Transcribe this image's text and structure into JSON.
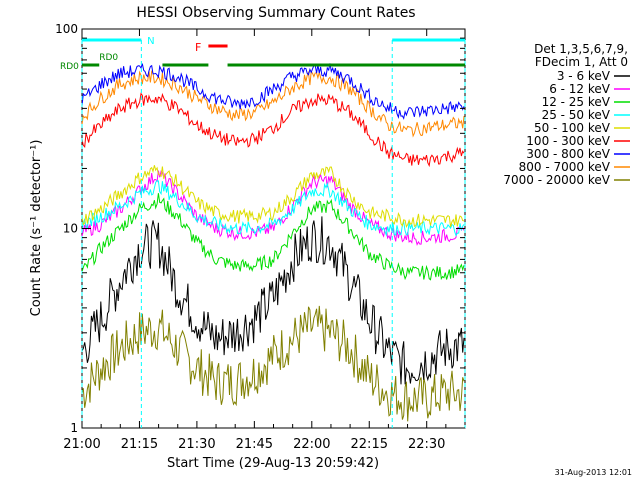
{
  "chart_data": {
    "type": "line",
    "title": "HESSI Observing Summary Count Rates",
    "xlabel": "Start Time (29-Aug-13 20:59:42)",
    "ylabel": "Count Rate (s⁻¹ detector⁻¹)",
    "yscale": "log",
    "ylim": [
      1,
      100
    ],
    "xlim_minutes_after_21_00": [
      0,
      100
    ],
    "x_ticks": [
      "21:00",
      "21:15",
      "21:30",
      "21:45",
      "22:00",
      "22:15",
      "22:30"
    ],
    "y_ticks": [
      "1",
      "10",
      "100"
    ],
    "grid": false,
    "legend_position": "right",
    "legend_header": [
      "Det 1,3,5,6,7,9,",
      "FDecim 1, Att 0"
    ],
    "series": [
      {
        "name": "3 - 6 keV",
        "color": "#000000",
        "x": [
          0,
          5,
          10,
          15,
          20,
          25,
          30,
          35,
          40,
          45,
          50,
          55,
          60,
          65,
          70,
          75,
          80,
          85,
          90,
          95,
          100
        ],
        "values": [
          2.4,
          3.5,
          5.5,
          8.0,
          8.5,
          5.0,
          3.5,
          2.8,
          3.0,
          3.5,
          4.5,
          7.0,
          9.0,
          8.5,
          5.5,
          3.5,
          2.4,
          2.0,
          2.2,
          2.5,
          2.6
        ]
      },
      {
        "name": "6 - 12 keV",
        "color": "#ff00ff",
        "x": [
          0,
          5,
          10,
          15,
          20,
          25,
          30,
          35,
          40,
          45,
          50,
          55,
          60,
          65,
          70,
          75,
          80,
          85,
          90,
          95,
          100
        ],
        "values": [
          9.5,
          10.5,
          12.5,
          15.5,
          19.0,
          15.0,
          11.5,
          10.0,
          9.5,
          9.5,
          10.0,
          13.0,
          17.0,
          17.5,
          13.0,
          10.5,
          9.5,
          9.0,
          9.0,
          9.2,
          9.5
        ]
      },
      {
        "name": "12 - 25 keV",
        "color": "#00dd00",
        "x": [
          0,
          5,
          10,
          15,
          20,
          25,
          30,
          35,
          40,
          45,
          50,
          55,
          60,
          65,
          70,
          75,
          80,
          85,
          90,
          95,
          100
        ],
        "values": [
          6.0,
          8.0,
          10.0,
          12.5,
          14.0,
          11.5,
          8.5,
          7.0,
          6.5,
          6.5,
          7.0,
          9.5,
          12.5,
          13.0,
          10.0,
          7.5,
          6.5,
          6.0,
          6.0,
          6.0,
          6.2
        ]
      },
      {
        "name": "25 - 50 keV",
        "color": "#00ffff",
        "x": [
          0,
          5,
          10,
          15,
          20,
          25,
          30,
          35,
          40,
          45,
          50,
          55,
          60,
          65,
          70,
          75,
          80,
          85,
          90,
          95,
          100
        ],
        "values": [
          10.5,
          11.5,
          13.0,
          15.0,
          16.5,
          14.0,
          11.5,
          10.5,
          10.0,
          10.0,
          10.5,
          12.5,
          15.5,
          15.5,
          12.5,
          10.5,
          10.0,
          10.0,
          10.0,
          10.0,
          10.0
        ]
      },
      {
        "name": "50 - 100 keV",
        "color": "#dddd00",
        "x": [
          0,
          5,
          10,
          15,
          20,
          25,
          30,
          35,
          40,
          45,
          50,
          55,
          60,
          65,
          70,
          75,
          80,
          85,
          90,
          95,
          100
        ],
        "values": [
          11.0,
          12.5,
          15.0,
          18.0,
          20.0,
          17.0,
          13.5,
          12.0,
          11.5,
          11.5,
          12.0,
          14.5,
          18.5,
          19.0,
          14.5,
          12.0,
          11.5,
          11.0,
          11.0,
          11.0,
          11.0
        ]
      },
      {
        "name": "100 - 300 keV",
        "color": "#ff0000",
        "x": [
          0,
          5,
          10,
          15,
          20,
          25,
          30,
          35,
          40,
          45,
          50,
          55,
          60,
          65,
          70,
          75,
          80,
          85,
          90,
          95,
          100
        ],
        "values": [
          27,
          33,
          40,
          44,
          45,
          40,
          33,
          29,
          27,
          28,
          32,
          39,
          44,
          44,
          38,
          30,
          24,
          22,
          22,
          23,
          24
        ]
      },
      {
        "name": "300 - 800 keV",
        "color": "#0000ff",
        "x": [
          0,
          5,
          10,
          15,
          20,
          25,
          30,
          35,
          40,
          45,
          50,
          55,
          60,
          65,
          70,
          75,
          80,
          85,
          90,
          95,
          100
        ],
        "values": [
          44,
          53,
          60,
          62,
          62,
          58,
          50,
          45,
          42,
          44,
          50,
          58,
          62,
          62,
          56,
          46,
          40,
          38,
          39,
          40,
          41
        ]
      },
      {
        "name": "800 - 7000 keV",
        "color": "#ff8800",
        "x": [
          0,
          5,
          10,
          15,
          20,
          25,
          30,
          35,
          40,
          45,
          50,
          55,
          60,
          65,
          70,
          75,
          80,
          85,
          90,
          95,
          100
        ],
        "values": [
          36,
          45,
          53,
          57,
          57,
          52,
          45,
          40,
          37,
          38,
          43,
          51,
          57,
          57,
          50,
          40,
          33,
          31,
          32,
          33,
          34
        ]
      },
      {
        "name": "7000 - 20000 keV",
        "color": "#808000",
        "x": [
          0,
          5,
          10,
          15,
          20,
          25,
          30,
          35,
          40,
          45,
          50,
          55,
          60,
          65,
          70,
          75,
          80,
          85,
          90,
          95,
          100
        ],
        "values": [
          1.5,
          2.0,
          2.5,
          3.0,
          3.2,
          2.5,
          2.0,
          1.7,
          1.7,
          1.9,
          2.3,
          2.8,
          3.2,
          3.0,
          2.5,
          1.8,
          1.5,
          1.4,
          1.4,
          1.5,
          1.5
        ]
      }
    ],
    "annotations": {
      "night_marker": "N",
      "saa_marker": "RD0",
      "flare_marker": "F"
    },
    "timestamp": "31-Aug-2013 12:01"
  }
}
